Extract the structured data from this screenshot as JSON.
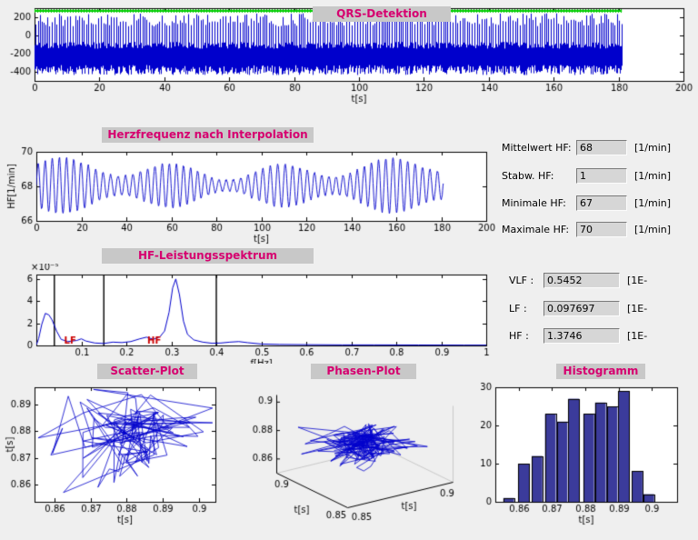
{
  "colors": {
    "window_bg": "#efefef",
    "title_fg": "#d6006f",
    "title_bg": "#c8c8c8",
    "signal_blue": "#0000cc",
    "marker_green": "#00cc00",
    "band_line": "#000000",
    "annotation_red": "#cc0000",
    "hist_fill": "#3b3b9b"
  },
  "hr_stats": {
    "rows": [
      {
        "label": "Mittelwert HF:",
        "value": "68",
        "unit": "[1/min]"
      },
      {
        "label": "Stabw. HF:",
        "value": "1",
        "unit": "[1/min]"
      },
      {
        "label": "Minimale HF:",
        "value": "67",
        "unit": "[1/min]"
      },
      {
        "label": "Maximale HF:",
        "value": "70",
        "unit": "[1/min]"
      }
    ]
  },
  "spectral_stats": {
    "rows": [
      {
        "label": "VLF :",
        "value": "0.5452",
        "unit": "[1E-"
      },
      {
        "label": "LF :",
        "value": "0.097697",
        "unit": "[1E-"
      },
      {
        "label": "HF :",
        "value": "1.3746",
        "unit": "[1E-"
      }
    ]
  },
  "chart_data": [
    {
      "name": "qrs",
      "type": "line",
      "title": "QRS-Detektion",
      "xlabel": "t[s]",
      "xlim": [
        0,
        200
      ],
      "ylim": [
        -500,
        300
      ],
      "xticks": [
        0,
        20,
        40,
        60,
        80,
        100,
        120,
        140,
        160,
        180,
        200
      ],
      "yticks": [
        200,
        0,
        -200,
        -400
      ],
      "series": [
        {
          "name": "ecg-signal",
          "kind": "ecg-band",
          "t_end": 181,
          "baseline_low": [
            -435,
            -325
          ],
          "baseline_high": [
            -145,
            -70
          ],
          "spike_top": [
            100,
            245
          ],
          "spike_bottom": [
            -370,
            -260
          ]
        },
        {
          "name": "qrs-marker-line",
          "kind": "marker-line",
          "y": 270,
          "t_start": 0,
          "t_end": 181
        }
      ]
    },
    {
      "name": "hf",
      "type": "line",
      "title": "Herzfrequenz nach Interpolation",
      "xlabel": "t[s]",
      "ylabel": "HF[1/min]",
      "xlim": [
        0,
        200
      ],
      "ylim": [
        66,
        70
      ],
      "xticks": [
        0,
        20,
        40,
        60,
        80,
        100,
        120,
        140,
        160,
        180,
        200
      ],
      "yticks": [
        66,
        68,
        70
      ],
      "series": [
        {
          "name": "hf-interpolated",
          "kind": "hf-osc",
          "t_end": 181,
          "mean": 68.05,
          "base_freq_hz": 0.31,
          "amp_range": [
            0.5,
            1.6
          ]
        }
      ]
    },
    {
      "name": "spectrum",
      "type": "line",
      "title": "HF-Leistungsspektrum",
      "xlabel": "f[Hz]",
      "scale_label": "×10⁻⁵",
      "xlim": [
        0,
        1
      ],
      "ylim": [
        0,
        6.4
      ],
      "xticks": [
        0.1,
        0.2,
        0.3,
        0.4,
        0.5,
        0.6,
        0.7,
        0.8,
        0.9,
        1
      ],
      "yticks": [
        0,
        2,
        4,
        6
      ],
      "band_lines": [
        0.04,
        0.15,
        0.4
      ],
      "annotations": [
        {
          "text": "LF",
          "x": 0.075,
          "y": 0.35
        },
        {
          "text": "HF",
          "x": 0.262,
          "y": 0.35
        }
      ],
      "points": [
        [
          0,
          0.05
        ],
        [
          0.005,
          0.6
        ],
        [
          0.012,
          1.9
        ],
        [
          0.02,
          2.9
        ],
        [
          0.028,
          2.75
        ],
        [
          0.035,
          2.3
        ],
        [
          0.045,
          1.3
        ],
        [
          0.055,
          0.55
        ],
        [
          0.07,
          0.35
        ],
        [
          0.09,
          0.45
        ],
        [
          0.1,
          0.6
        ],
        [
          0.11,
          0.4
        ],
        [
          0.13,
          0.22
        ],
        [
          0.15,
          0.18
        ],
        [
          0.17,
          0.3
        ],
        [
          0.19,
          0.26
        ],
        [
          0.21,
          0.35
        ],
        [
          0.23,
          0.6
        ],
        [
          0.245,
          0.75
        ],
        [
          0.26,
          0.55
        ],
        [
          0.275,
          0.8
        ],
        [
          0.285,
          1.3
        ],
        [
          0.295,
          3.0
        ],
        [
          0.303,
          5.2
        ],
        [
          0.31,
          6.0
        ],
        [
          0.318,
          4.6
        ],
        [
          0.327,
          2.2
        ],
        [
          0.336,
          1.0
        ],
        [
          0.35,
          0.5
        ],
        [
          0.37,
          0.3
        ],
        [
          0.39,
          0.2
        ],
        [
          0.41,
          0.22
        ],
        [
          0.43,
          0.3
        ],
        [
          0.45,
          0.35
        ],
        [
          0.47,
          0.25
        ],
        [
          0.5,
          0.13
        ],
        [
          0.54,
          0.09
        ],
        [
          0.6,
          0.07
        ],
        [
          0.68,
          0.05
        ],
        [
          0.75,
          0.05
        ],
        [
          0.85,
          0.04
        ],
        [
          0.95,
          0.03
        ],
        [
          1,
          0.03
        ]
      ]
    },
    {
      "name": "scatter",
      "type": "scatter-line",
      "title": "Scatter-Plot",
      "xlabel": "t[s]",
      "ylabel": "t[s]",
      "xlim": [
        0.8545,
        0.9045
      ],
      "ylim": [
        0.8535,
        0.8965
      ],
      "xticks": [
        0.86,
        0.87,
        0.88,
        0.89,
        0.9
      ],
      "yticks": [
        0.86,
        0.87,
        0.88,
        0.89
      ],
      "cluster": {
        "cx": 0.882,
        "cy": 0.879,
        "sx": 0.0095,
        "sy": 0.008,
        "n": 110
      },
      "outliers": [
        [
          0.8555,
          0.8775
        ],
        [
          0.8625,
          0.857
        ]
      ]
    },
    {
      "name": "phase",
      "type": "line3d",
      "title": "Phasen-Plot",
      "axis_label": "t[s]",
      "zticks": [
        0.9,
        0.88,
        0.86
      ],
      "x_edge_labels": [
        "0.9",
        "0.85"
      ],
      "y_edge_labels": [
        "0.85",
        "0.9"
      ],
      "cluster": {
        "c": 0.88,
        "s": 0.009,
        "n": 150
      }
    },
    {
      "name": "histogram",
      "type": "bar",
      "title": "Histogramm",
      "xlabel": "t[s]",
      "xlim": [
        0.853,
        0.9075
      ],
      "ylim": [
        0,
        30
      ],
      "xticks": [
        0.86,
        0.87,
        0.88,
        0.89,
        0.9
      ],
      "yticks": [
        0,
        10,
        20,
        30
      ],
      "bar_width": 0.0032,
      "centers": [
        0.857,
        0.8615,
        0.8655,
        0.8695,
        0.873,
        0.8765,
        0.881,
        0.8845,
        0.888,
        0.8915,
        0.8955,
        0.899
      ],
      "heights": [
        1,
        10,
        12,
        23,
        21,
        27,
        23,
        26,
        25,
        29,
        8,
        2
      ]
    }
  ]
}
